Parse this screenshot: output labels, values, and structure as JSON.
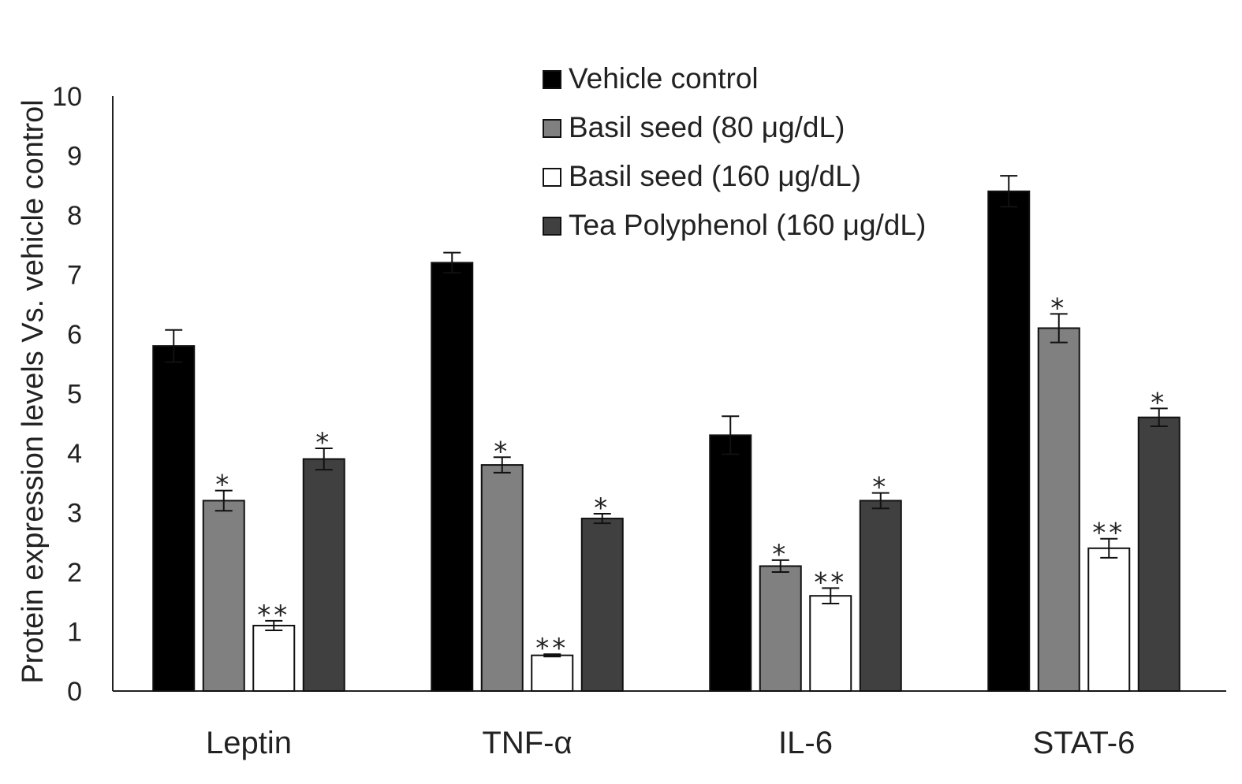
{
  "chart_data": {
    "type": "bar",
    "title": "",
    "xlabel": "",
    "ylabel": "Protein expression levels Vs. vehicle control",
    "ylim": [
      0,
      10
    ],
    "yticks": [
      "0",
      "1",
      "2",
      "3",
      "4",
      "5",
      "6",
      "7",
      "8",
      "9",
      "10"
    ],
    "categories": [
      "Leptin",
      "TNF-α",
      "IL-6",
      "STAT-6"
    ],
    "grid": false,
    "legend_position": "top-center",
    "series": [
      {
        "name": "Vehicle control",
        "color": "#000000",
        "values": [
          5.8,
          7.2,
          4.3,
          8.4
        ],
        "errors": [
          0.27,
          0.17,
          0.32,
          0.26
        ],
        "significance": [
          "",
          "",
          "",
          ""
        ]
      },
      {
        "name": "Basil seed (80 μg/dL)",
        "color": "#808080",
        "values": [
          3.2,
          3.8,
          2.1,
          6.1
        ],
        "errors": [
          0.17,
          0.13,
          0.1,
          0.24
        ],
        "significance": [
          "*",
          "*",
          "*",
          "*"
        ]
      },
      {
        "name": "Basil seed (160 μg/dL)",
        "color": "#ffffff",
        "values": [
          1.1,
          0.6,
          1.6,
          2.4
        ],
        "errors": [
          0.08,
          0.02,
          0.13,
          0.16
        ],
        "significance": [
          "**",
          "**",
          "**",
          "**"
        ]
      },
      {
        "name": "Tea Polyphenol (160 μg/dL)",
        "color": "#404040",
        "values": [
          3.9,
          2.9,
          3.2,
          4.6
        ],
        "errors": [
          0.18,
          0.08,
          0.13,
          0.15
        ],
        "significance": [
          "*",
          "*",
          "*",
          "*"
        ]
      }
    ]
  }
}
